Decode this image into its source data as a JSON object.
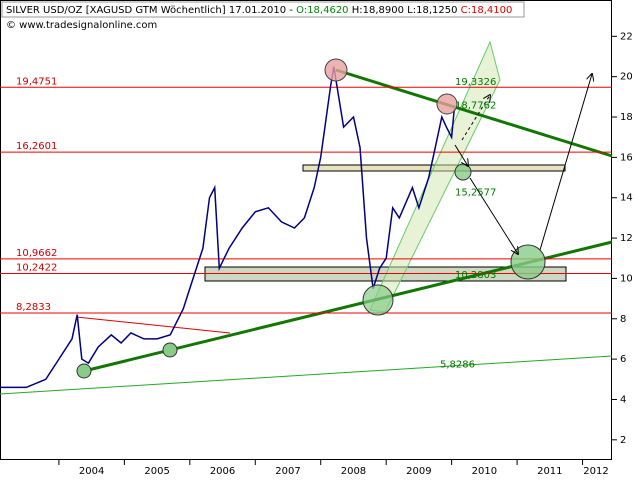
{
  "chart_data": {
    "type": "line",
    "title": "SILVER USD/OZ [XAGUSD GTM  Wöchentlich]",
    "date": "17.01.2010",
    "sep": "-",
    "open": "O:18,4620",
    "high": "H:18,8900",
    "low": "L:18,1250",
    "close": "C:18,4100",
    "source": "© www.tradesignalonline.com",
    "x": [
      2003.1,
      2003.5,
      2003.8,
      2004.0,
      2004.2,
      2004.28,
      2004.35,
      2004.45,
      2004.6,
      2004.8,
      2004.95,
      2005.1,
      2005.3,
      2005.5,
      2005.7,
      2005.9,
      2006.0,
      2006.2,
      2006.3,
      2006.38,
      2006.45,
      2006.6,
      2006.8,
      2007.0,
      2007.2,
      2007.4,
      2007.6,
      2007.75,
      2007.9,
      2008.0,
      2008.15,
      2008.2,
      2008.35,
      2008.5,
      2008.6,
      2008.7,
      2008.8,
      2008.9,
      2009.0,
      2009.1,
      2009.2,
      2009.4,
      2009.5,
      2009.65,
      2009.75,
      2009.85,
      2009.92,
      2010.0,
      2010.04
    ],
    "values": [
      4.6,
      4.6,
      5.0,
      6.0,
      7.0,
      8.2,
      6.0,
      5.8,
      6.6,
      7.2,
      6.8,
      7.3,
      7.0,
      7.0,
      7.2,
      8.5,
      9.5,
      11.5,
      14.0,
      14.5,
      10.5,
      11.5,
      12.5,
      13.3,
      13.5,
      12.8,
      12.5,
      13.0,
      14.5,
      16.0,
      19.5,
      20.5,
      17.5,
      18.0,
      16.5,
      12.0,
      9.5,
      10.5,
      11.0,
      13.5,
      13.0,
      14.5,
      13.5,
      15.0,
      16.5,
      18.0,
      17.5,
      17.0,
      18.41
    ],
    "color": "#000080",
    "xlim": [
      2003.1,
      2012.45
    ],
    "xticks": [
      2004,
      2005,
      2006,
      2007,
      2008,
      2009,
      2010,
      2011,
      2012
    ],
    "ylim": [
      1,
      23.8
    ],
    "yticks": [
      2,
      4,
      6,
      8,
      10,
      12,
      14,
      16,
      18,
      20,
      22
    ],
    "hlines": [
      {
        "value": 19.4751,
        "label": "19,4751"
      },
      {
        "value": 16.2601,
        "label": "16,2601"
      },
      {
        "value": 10.9662,
        "label": "10,9662"
      },
      {
        "value": 10.2422,
        "label": "10,2422"
      },
      {
        "value": 8.2833,
        "label": "8,2833"
      }
    ],
    "levels": [
      {
        "value": 19.3326,
        "label": "19,3326"
      },
      {
        "value": 18.7762,
        "label": "18,7762"
      },
      {
        "value": 15.2577,
        "label": "15,2577"
      },
      {
        "value": 10.2803,
        "label": "10,2803"
      },
      {
        "value": 5.8286,
        "label": "5,8286"
      }
    ]
  }
}
